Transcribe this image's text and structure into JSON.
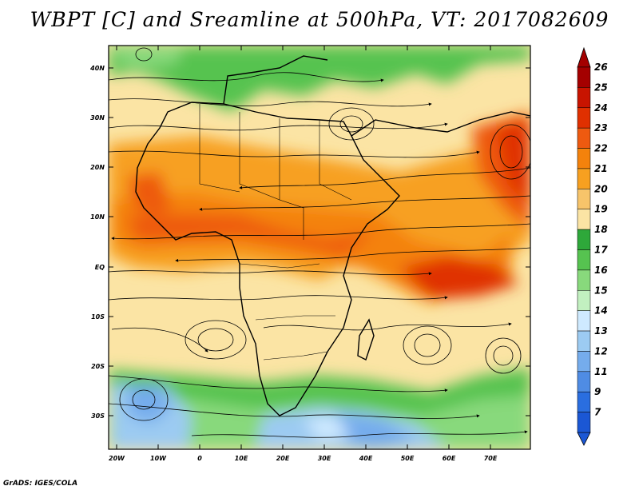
{
  "title": "WBPT [C] and Sreamline at 500hPa, VT: 2017082609",
  "credit": "GrADS: IGES/COLA",
  "map": {
    "lat_ticks": [
      "40N",
      "30N",
      "20N",
      "10N",
      "EQ",
      "10S",
      "20S",
      "30S"
    ],
    "lon_ticks": [
      "20W",
      "10W",
      "0",
      "10E",
      "20E",
      "30E",
      "40E",
      "50E",
      "60E",
      "70E"
    ]
  },
  "colorbar": {
    "labels": [
      "26",
      "25",
      "24",
      "23",
      "22",
      "21",
      "20",
      "19",
      "18",
      "17",
      "16",
      "15",
      "14",
      "13",
      "12",
      "11",
      "9",
      "7"
    ],
    "colors": [
      "#a40000",
      "#c81400",
      "#e03000",
      "#ee5a10",
      "#f4820c",
      "#f7a020",
      "#f7c46a",
      "#fbe4a4",
      "#2ea83a",
      "#56c350",
      "#88d97c",
      "#c2f0c0",
      "#cfeaff",
      "#9ccbf2",
      "#75acec",
      "#4f8ce4",
      "#2a6ee0",
      "#1b57d4"
    ]
  }
}
